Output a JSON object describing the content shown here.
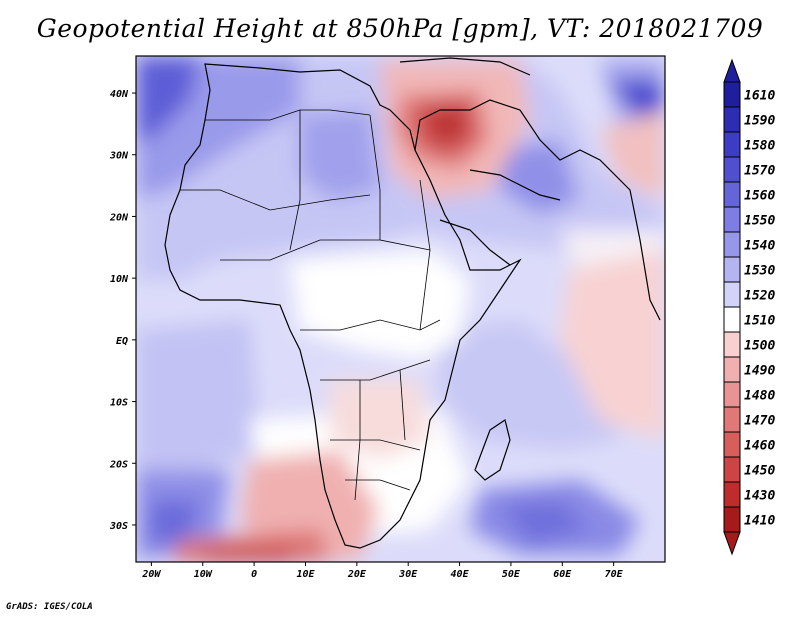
{
  "title": "Geopotential Height at 850hPa [gpm], VT: 2018021709",
  "credit": "GrADS: IGES/COLA",
  "map": {
    "lon_range": [
      -23,
      80
    ],
    "lat_range": [
      -36,
      46
    ],
    "x_ticks": [
      {
        "lon": -20,
        "label": "20W"
      },
      {
        "lon": -10,
        "label": "10W"
      },
      {
        "lon": 0,
        "label": "0"
      },
      {
        "lon": 10,
        "label": "10E"
      },
      {
        "lon": 20,
        "label": "20E"
      },
      {
        "lon": 30,
        "label": "30E"
      },
      {
        "lon": 40,
        "label": "40E"
      },
      {
        "lon": 50,
        "label": "50E"
      },
      {
        "lon": 60,
        "label": "60E"
      },
      {
        "lon": 70,
        "label": "70E"
      }
    ],
    "y_ticks": [
      {
        "lat": 40,
        "label": "40N"
      },
      {
        "lat": 30,
        "label": "30N"
      },
      {
        "lat": 20,
        "label": "20N"
      },
      {
        "lat": 10,
        "label": "10N"
      },
      {
        "lat": 0,
        "label": "EQ"
      },
      {
        "lat": -10,
        "label": "10S"
      },
      {
        "lat": -20,
        "label": "20S"
      },
      {
        "lat": -30,
        "label": "30S"
      }
    ]
  },
  "colorbar": {
    "levels": [
      {
        "label": "1610",
        "color": "#1f1f9e"
      },
      {
        "label": "1590",
        "color": "#2d2db3"
      },
      {
        "label": "1580",
        "color": "#3c3cc4"
      },
      {
        "label": "1570",
        "color": "#4f4fd0"
      },
      {
        "label": "1560",
        "color": "#6565da"
      },
      {
        "label": "1550",
        "color": "#7d7de3"
      },
      {
        "label": "1540",
        "color": "#9797ea"
      },
      {
        "label": "1530",
        "color": "#b4b4f1"
      },
      {
        "label": "1520",
        "color": "#d3d3f8"
      },
      {
        "label": "1510",
        "color": "#ffffff"
      },
      {
        "label": "1500",
        "color": "#f9d0d0"
      },
      {
        "label": "1490",
        "color": "#f1b0b0"
      },
      {
        "label": "1480",
        "color": "#e99494"
      },
      {
        "label": "1470",
        "color": "#e07878"
      },
      {
        "label": "1460",
        "color": "#d85e5e"
      },
      {
        "label": "1450",
        "color": "#cd4444"
      },
      {
        "label": "1430",
        "color": "#bf2c2c"
      },
      {
        "label": "1410",
        "color": "#a51a1a"
      }
    ]
  }
}
